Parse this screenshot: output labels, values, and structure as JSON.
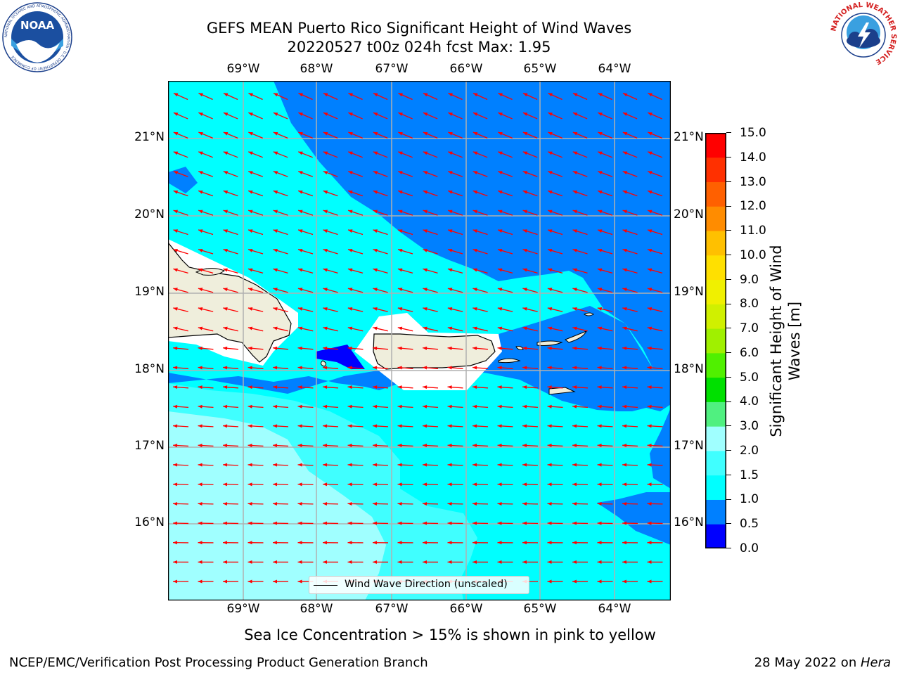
{
  "title": {
    "line1": "GEFS MEAN Puerto Rico Significant Height of Wind Waves",
    "line2": "20220527 t00z 024h fcst   Max: 1.95"
  },
  "map": {
    "longitude_labels": [
      "69°W",
      "68°W",
      "67°W",
      "66°W",
      "65°W",
      "64°W"
    ],
    "latitude_labels": [
      "21°N",
      "20°N",
      "19°N",
      "18°N",
      "17°N",
      "16°N"
    ],
    "legend_label": "Wind Wave Direction (unscaled)",
    "arrow_color": "#ff0000",
    "land_color": "#efeedc"
  },
  "colorbar": {
    "title_line1": "Significant Height of Wind",
    "title_line2": "Waves [m]",
    "ticks": [
      "0.0",
      "0.5",
      "1.0",
      "1.5",
      "2.0",
      "3.0",
      "4.0",
      "5.0",
      "6.0",
      "7.0",
      "8.0",
      "9.0",
      "10.0",
      "11.0",
      "12.0",
      "13.0",
      "14.0",
      "15.0"
    ],
    "colors": [
      "#0000ff",
      "#0080ff",
      "#00ffff",
      "#40ffff",
      "#a0ffff",
      "#50f080",
      "#00e000",
      "#50f000",
      "#a0f000",
      "#d0f000",
      "#f0f000",
      "#ffe000",
      "#ffc000",
      "#ff8c00",
      "#ff6000",
      "#ff3000",
      "#ff0000"
    ]
  },
  "note": "Sea Ice Concentration > 15% is shown in pink to yellow",
  "footer": {
    "left": "NCEP/EMC/Verification Post Processing Product Generation Branch",
    "right_prefix": "28 May 2022 on ",
    "right_host": "Hera"
  },
  "logos": {
    "noaa": "NOAA",
    "noaa_ring": "NATIONAL OCEANIC AND ATMOSPHERIC ADMINISTRATION · U.S. DEPARTMENT OF COMMERCE",
    "nws_ring": "NATIONAL WEATHER SERVICE"
  }
}
